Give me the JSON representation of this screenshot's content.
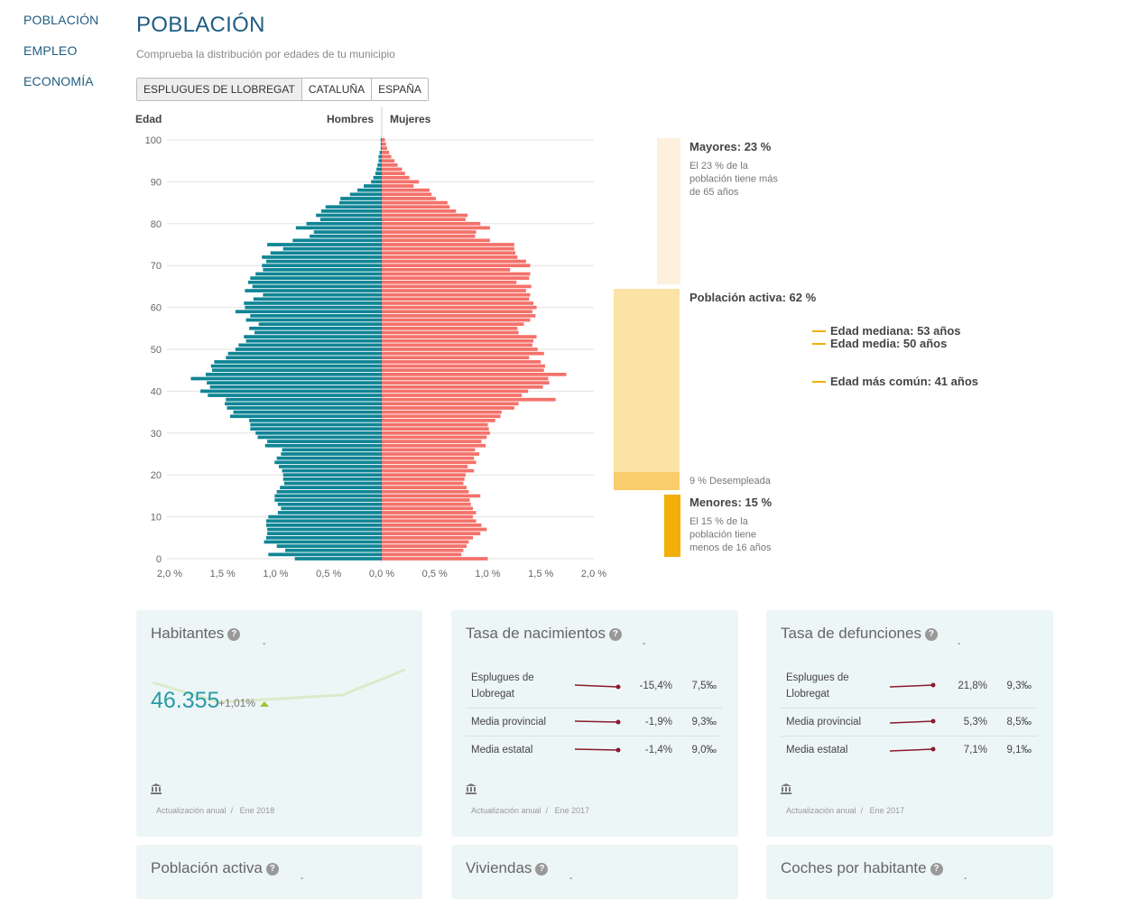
{
  "nav": {
    "items": [
      "POBLACIÓN",
      "EMPLEO",
      "ECONOMÍA"
    ]
  },
  "header": {
    "title": "POBLACIÓN",
    "subtitle": "Comprueba la distribución por edades de tu municipio"
  },
  "tabs": [
    {
      "label": "ESPLUGUES DE LLOBREGAT",
      "active": true
    },
    {
      "label": "CATALUÑA",
      "active": false
    },
    {
      "label": "ESPAÑA",
      "active": false
    }
  ],
  "chart_data": {
    "type": "bar",
    "orientation": "horizontal-population-pyramid",
    "ylabel": "Edad",
    "series_labels": [
      "Hombres",
      "Mujeres"
    ],
    "x_ticks": [
      "2,0 %",
      "1,5 %",
      "1,0 %",
      "0,5 %",
      "0,0 %",
      "0,5 %",
      "1,0 %",
      "1,5 %",
      "2,0 %"
    ],
    "y_ticks": [
      "0",
      "10",
      "20",
      "30",
      "40",
      "50",
      "60",
      "70",
      "80",
      "90",
      "100"
    ],
    "xlim": [
      -2.0,
      2.0
    ],
    "ylim": [
      0,
      100
    ],
    "grid": true,
    "colors": {
      "hombres": "#0f8595",
      "mujeres": "#f4716a"
    },
    "ages": [
      0,
      1,
      2,
      3,
      4,
      5,
      6,
      7,
      8,
      9,
      10,
      11,
      12,
      13,
      14,
      15,
      16,
      17,
      18,
      19,
      20,
      21,
      22,
      23,
      24,
      25,
      26,
      27,
      28,
      29,
      30,
      31,
      32,
      33,
      34,
      35,
      36,
      37,
      38,
      39,
      40,
      41,
      42,
      43,
      44,
      45,
      46,
      47,
      48,
      49,
      50,
      51,
      52,
      53,
      54,
      55,
      56,
      57,
      58,
      59,
      60,
      61,
      62,
      63,
      64,
      65,
      66,
      67,
      68,
      69,
      70,
      71,
      72,
      73,
      74,
      75,
      76,
      77,
      78,
      79,
      80,
      81,
      82,
      83,
      84,
      85,
      86,
      87,
      88,
      89,
      90,
      91,
      92,
      93,
      94,
      95,
      96,
      97,
      98,
      99,
      100
    ],
    "hombres": [
      0.82,
      1.07,
      0.91,
      0.99,
      1.11,
      1.09,
      1.08,
      1.08,
      1.09,
      1.09,
      1.07,
      0.98,
      0.95,
      0.98,
      1.01,
      1.01,
      0.99,
      0.96,
      0.92,
      0.93,
      0.93,
      0.94,
      0.97,
      1.01,
      0.99,
      0.95,
      0.94,
      1.1,
      1.08,
      1.17,
      1.19,
      1.24,
      1.24,
      1.25,
      1.43,
      1.4,
      1.46,
      1.48,
      1.47,
      1.64,
      1.71,
      1.62,
      1.65,
      1.8,
      1.66,
      1.6,
      1.61,
      1.58,
      1.47,
      1.45,
      1.38,
      1.35,
      1.28,
      1.3,
      1.2,
      1.25,
      1.16,
      1.28,
      1.24,
      1.38,
      1.29,
      1.3,
      1.21,
      1.12,
      1.29,
      1.22,
      1.26,
      1.24,
      1.19,
      1.12,
      1.13,
      1.09,
      1.13,
      1.05,
      0.93,
      1.08,
      0.84,
      0.68,
      0.64,
      0.81,
      0.71,
      0.58,
      0.62,
      0.57,
      0.53,
      0.4,
      0.39,
      0.3,
      0.23,
      0.17,
      0.1,
      0.08,
      0.06,
      0.05,
      0.04,
      0.03,
      0.03,
      0.02,
      0.01,
      0.01,
      0.01
    ],
    "mujeres": [
      1.0,
      0.75,
      0.77,
      0.8,
      0.82,
      0.86,
      0.93,
      0.99,
      0.94,
      0.89,
      0.86,
      0.89,
      0.86,
      0.84,
      0.83,
      0.93,
      0.82,
      0.8,
      0.77,
      0.78,
      0.79,
      0.87,
      0.81,
      0.89,
      0.87,
      0.92,
      0.88,
      0.98,
      0.94,
      0.99,
      1.02,
      1.01,
      1.0,
      1.07,
      1.12,
      1.13,
      1.25,
      1.29,
      1.64,
      1.32,
      1.38,
      1.52,
      1.58,
      1.57,
      1.74,
      1.53,
      1.54,
      1.5,
      1.39,
      1.53,
      1.47,
      1.42,
      1.43,
      1.46,
      1.29,
      1.28,
      1.34,
      1.4,
      1.45,
      1.42,
      1.46,
      1.43,
      1.39,
      1.4,
      1.36,
      1.41,
      1.27,
      1.39,
      1.4,
      1.21,
      1.4,
      1.36,
      1.28,
      1.26,
      1.25,
      1.25,
      1.02,
      0.88,
      0.89,
      1.02,
      0.93,
      0.79,
      0.81,
      0.7,
      0.64,
      0.62,
      0.51,
      0.47,
      0.45,
      0.3,
      0.35,
      0.26,
      0.22,
      0.19,
      0.15,
      0.12,
      0.09,
      0.07,
      0.05,
      0.04,
      0.03
    ]
  },
  "side_panel": {
    "mayores": {
      "title": "Mayores: 23 %",
      "desc": [
        "El 23 % de la",
        "población tiene más",
        "de 65 años"
      ]
    },
    "activa": {
      "title": "Población activa: 62 %"
    },
    "desempleada": "9 % Desempleada",
    "menores": {
      "title": "Menores: 15 %",
      "desc": [
        "El 15 % de la",
        "población tiene",
        "menos de 16 años"
      ]
    },
    "stats": [
      "Edad mediana: 53 años",
      "Edad media: 50 años",
      "Edad más común: 41 años"
    ],
    "colors": {
      "mayores": "#fdf0dc",
      "activa": "#fbe3a6",
      "desempleada": "#f9cd6c",
      "menores": "#f3ae0a",
      "marker": "#f3ae0a"
    }
  },
  "cards": {
    "habitantes": {
      "title": "Habitantes",
      "help": "?",
      "dash": "-",
      "value": "46.355",
      "change": "+1,01%",
      "update": "Actualización anual",
      "date": "Ene 2018"
    },
    "nacimientos": {
      "title": "Tasa de nacimientos",
      "help": "?",
      "dash": "-",
      "rows": [
        {
          "name": "Esplugues de Llobregat",
          "change": "-15,4%",
          "value": "7,5‰"
        },
        {
          "name": "Media provincial",
          "change": "-1,9%",
          "value": "9,3‰"
        },
        {
          "name": "Media estatal",
          "change": "-1,4%",
          "value": "9,0‰"
        }
      ],
      "update": "Actualización anual",
      "date": "Ene 2017"
    },
    "defunciones": {
      "title": "Tasa de defunciones",
      "help": "?",
      "dash": "-",
      "rows": [
        {
          "name": "Esplugues de Llobregat",
          "change": "21,8%",
          "value": "9,3‰"
        },
        {
          "name": "Media provincial",
          "change": "5,3%",
          "value": "8,5‰"
        },
        {
          "name": "Media estatal",
          "change": "7,1%",
          "value": "9,1‰"
        }
      ],
      "update": "Actualización anual",
      "date": "Ene 2017"
    },
    "activa": {
      "title": "Población activa",
      "help": "?",
      "dash": "-"
    },
    "viviendas": {
      "title": "Viviendas",
      "help": "?",
      "dash": "-"
    },
    "coches": {
      "title": "Coches por habitante",
      "help": "?",
      "dash": "-"
    }
  }
}
